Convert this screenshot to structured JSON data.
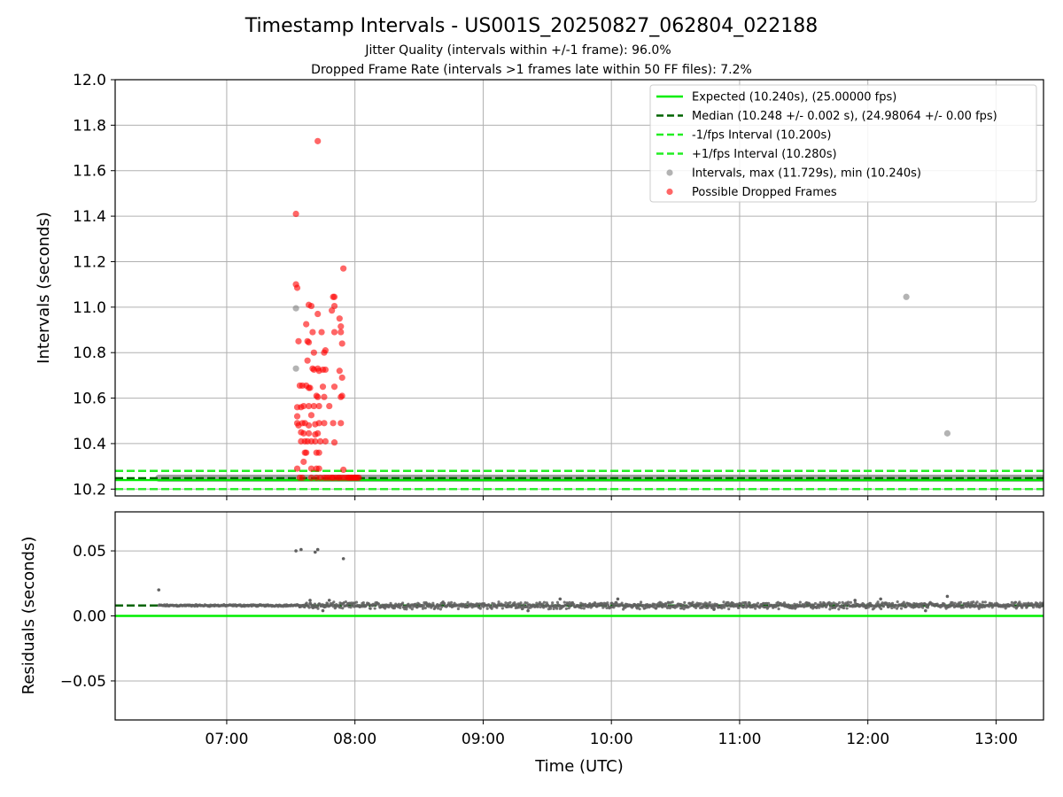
{
  "title": "Timestamp Intervals - US001S_20250827_062804_022188",
  "subtitle1": "Jitter Quality (intervals within +/-1 frame): 96.0%",
  "subtitle2": "Dropped Frame Rate (intervals >1 frames late within 50 FF files): 7.2%",
  "colors": {
    "expected": "#00ee00",
    "median": "#006400",
    "bounds": "#22ee22",
    "intervals": "#808080",
    "dropped": "#ff0000",
    "residual_points": "#606060",
    "grid": "#b0b0b0"
  },
  "chart_data": [
    {
      "type": "scatter",
      "panel": "intervals",
      "ylabel": "Intervals (seconds)",
      "ylim": [
        10.17,
        12.0
      ],
      "xlim_hours": [
        6.13,
        13.37
      ],
      "yticks": [
        "10.2",
        "10.4",
        "10.6",
        "10.8",
        "11.0",
        "11.2",
        "11.4",
        "11.6",
        "11.8",
        "12.0"
      ],
      "grid": true,
      "legend_placement": "top-right",
      "legend": [
        {
          "label": "Expected (10.240s), (25.00000 fps)",
          "style": "solid-line",
          "color": "#00ee00"
        },
        {
          "label": "Median (10.248 +/- 0.002 s), (24.98064 +/- 0.00 fps)",
          "style": "dashed-line",
          "color": "#006400"
        },
        {
          "label": "-1/fps Interval (10.200s)",
          "style": "dashed-line",
          "color": "#22ee22"
        },
        {
          "label": "+1/fps Interval (10.280s)",
          "style": "dashed-line",
          "color": "#22ee22"
        },
        {
          "label": "Intervals, max (11.729s), min (10.240s)",
          "style": "marker",
          "color": "#808080"
        },
        {
          "label": "Possible Dropped Frames",
          "style": "marker",
          "color": "#ff0000"
        }
      ],
      "reference_lines": {
        "expected": 10.24,
        "median": 10.248,
        "minus_one_frame": 10.2,
        "plus_one_frame": 10.28
      },
      "series": [
        {
          "name": "Intervals, max (11.729s), min (10.240s)",
          "dense_band": {
            "x_from": 6.47,
            "x_to": 13.37,
            "y": 10.248
          },
          "points": [
            [
              7.54,
              10.995
            ],
            [
              7.54,
              10.73
            ],
            [
              12.3,
              11.045
            ],
            [
              12.62,
              10.445
            ]
          ]
        },
        {
          "name": "Possible Dropped Frames",
          "points": [
            [
              7.71,
              11.73
            ],
            [
              7.54,
              11.41
            ],
            [
              7.91,
              11.17
            ],
            [
              7.54,
              11.1
            ],
            [
              7.55,
              11.085
            ],
            [
              7.64,
              11.01
            ],
            [
              7.66,
              11.005
            ],
            [
              7.83,
              11.045
            ],
            [
              7.84,
              11.045
            ],
            [
              7.82,
              10.985
            ],
            [
              7.84,
              11.005
            ],
            [
              7.88,
              10.95
            ],
            [
              7.89,
              10.915
            ],
            [
              7.71,
              10.97
            ],
            [
              7.62,
              10.925
            ],
            [
              7.56,
              10.85
            ],
            [
              7.63,
              10.85
            ],
            [
              7.64,
              10.845
            ],
            [
              7.67,
              10.89
            ],
            [
              7.74,
              10.89
            ],
            [
              7.76,
              10.8
            ],
            [
              7.77,
              10.81
            ],
            [
              7.84,
              10.89
            ],
            [
              7.89,
              10.89
            ],
            [
              7.9,
              10.84
            ],
            [
              7.68,
              10.8
            ],
            [
              7.63,
              10.765
            ],
            [
              7.67,
              10.73
            ],
            [
              7.68,
              10.725
            ],
            [
              7.71,
              10.73
            ],
            [
              7.72,
              10.72
            ],
            [
              7.75,
              10.725
            ],
            [
              7.77,
              10.725
            ],
            [
              7.88,
              10.72
            ],
            [
              7.9,
              10.69
            ],
            [
              7.57,
              10.655
            ],
            [
              7.59,
              10.655
            ],
            [
              7.62,
              10.655
            ],
            [
              7.64,
              10.645
            ],
            [
              7.65,
              10.645
            ],
            [
              7.7,
              10.61
            ],
            [
              7.71,
              10.605
            ],
            [
              7.75,
              10.65
            ],
            [
              7.76,
              10.605
            ],
            [
              7.84,
              10.65
            ],
            [
              7.89,
              10.605
            ],
            [
              7.9,
              10.61
            ],
            [
              7.55,
              10.56
            ],
            [
              7.58,
              10.56
            ],
            [
              7.6,
              10.565
            ],
            [
              7.64,
              10.565
            ],
            [
              7.66,
              10.525
            ],
            [
              7.68,
              10.565
            ],
            [
              7.72,
              10.565
            ],
            [
              7.8,
              10.565
            ],
            [
              7.55,
              10.52
            ],
            [
              7.55,
              10.49
            ],
            [
              7.56,
              10.48
            ],
            [
              7.59,
              10.49
            ],
            [
              7.61,
              10.49
            ],
            [
              7.64,
              10.48
            ],
            [
              7.69,
              10.485
            ],
            [
              7.72,
              10.49
            ],
            [
              7.76,
              10.49
            ],
            [
              7.83,
              10.49
            ],
            [
              7.89,
              10.49
            ],
            [
              7.58,
              10.45
            ],
            [
              7.6,
              10.445
            ],
            [
              7.64,
              10.445
            ],
            [
              7.69,
              10.44
            ],
            [
              7.71,
              10.445
            ],
            [
              7.58,
              10.41
            ],
            [
              7.61,
              10.41
            ],
            [
              7.63,
              10.41
            ],
            [
              7.66,
              10.41
            ],
            [
              7.69,
              10.41
            ],
            [
              7.73,
              10.41
            ],
            [
              7.77,
              10.41
            ],
            [
              7.84,
              10.405
            ],
            [
              7.61,
              10.36
            ],
            [
              7.62,
              10.36
            ],
            [
              7.7,
              10.36
            ],
            [
              7.72,
              10.36
            ],
            [
              7.6,
              10.32
            ],
            [
              7.66,
              10.29
            ],
            [
              7.55,
              10.29
            ],
            [
              7.7,
              10.29
            ],
            [
              7.72,
              10.29
            ],
            [
              7.91,
              10.285
            ],
            [
              7.57,
              10.25
            ],
            [
              7.59,
              10.25
            ],
            [
              7.66,
              10.25
            ],
            [
              7.7,
              10.25
            ],
            [
              7.73,
              10.25
            ],
            [
              7.76,
              10.25
            ],
            [
              7.78,
              10.25
            ],
            [
              7.8,
              10.25
            ],
            [
              7.82,
              10.25
            ],
            [
              7.83,
              10.25
            ],
            [
              7.85,
              10.25
            ],
            [
              7.87,
              10.25
            ],
            [
              7.88,
              10.25
            ],
            [
              7.9,
              10.25
            ],
            [
              7.92,
              10.25
            ],
            [
              7.94,
              10.25
            ],
            [
              7.95,
              10.25
            ],
            [
              7.96,
              10.25
            ],
            [
              7.97,
              10.25
            ],
            [
              7.98,
              10.25
            ],
            [
              7.99,
              10.25
            ],
            [
              8.0,
              10.25
            ],
            [
              8.01,
              10.25
            ],
            [
              8.02,
              10.25
            ],
            [
              8.03,
              10.25
            ]
          ]
        }
      ]
    },
    {
      "type": "scatter",
      "panel": "residuals",
      "xlabel": "Time (UTC)",
      "ylabel": "Residuals (seconds)",
      "ylim": [
        -0.08,
        0.08
      ],
      "xlim_hours": [
        6.13,
        13.37
      ],
      "yticks": [
        "−0.05",
        "0.00",
        "0.05"
      ],
      "xticks": [
        "07:00",
        "08:00",
        "09:00",
        "10:00",
        "11:00",
        "12:00",
        "13:00"
      ],
      "grid": true,
      "reference_lines": {
        "expected": 0.0,
        "median": 0.008
      },
      "series": [
        {
          "name": "Residuals",
          "dense_band": {
            "x_from": 6.47,
            "x_to": 13.37,
            "y": 0.008,
            "spread": 0.003
          },
          "points": [
            [
              6.47,
              0.02
            ],
            [
              7.54,
              0.05
            ],
            [
              7.58,
              0.051
            ],
            [
              7.69,
              0.049
            ],
            [
              7.71,
              0.051
            ],
            [
              7.91,
              0.044
            ],
            [
              7.57,
              0.007
            ],
            [
              7.65,
              0.012
            ],
            [
              7.75,
              0.004
            ],
            [
              7.8,
              0.012
            ],
            [
              9.6,
              0.013
            ],
            [
              10.05,
              0.013
            ],
            [
              12.62,
              0.015
            ],
            [
              9.35,
              0.004
            ],
            [
              10.8,
              0.005
            ],
            [
              11.9,
              0.012
            ],
            [
              12.1,
              0.013
            ],
            [
              12.45,
              0.004
            ]
          ]
        }
      ]
    }
  ]
}
